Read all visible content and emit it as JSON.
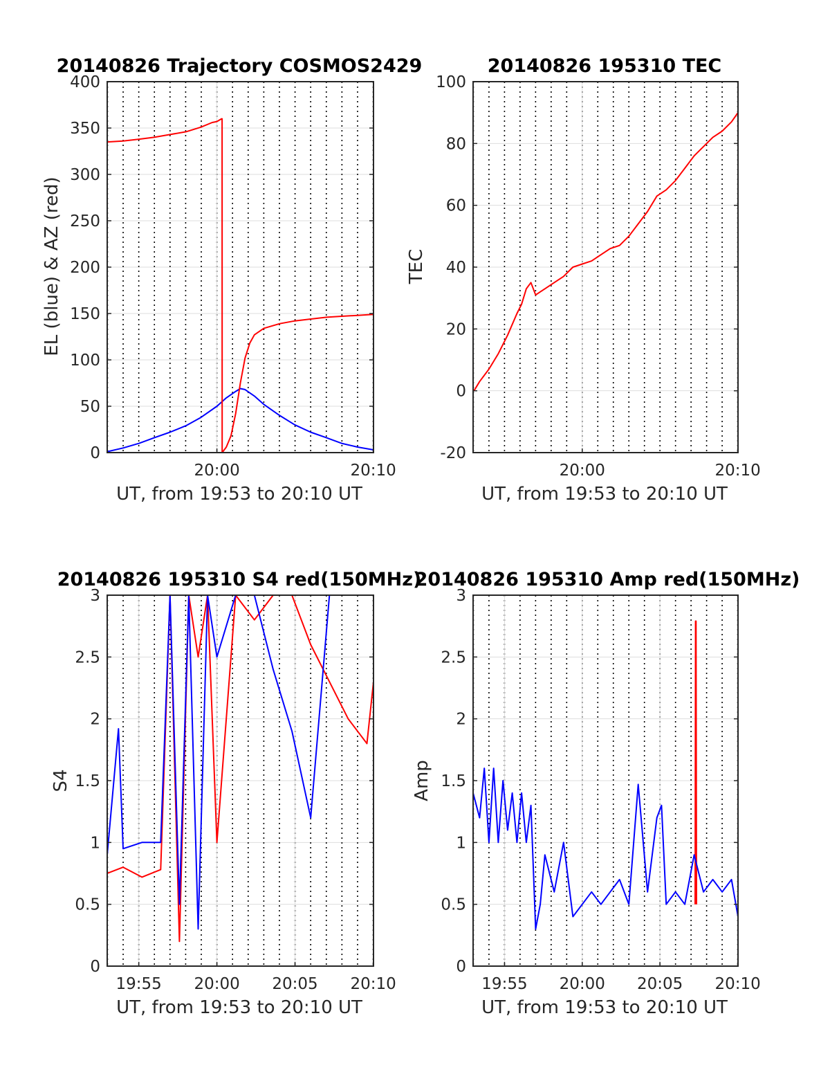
{
  "colors": {
    "el": "#0000ff",
    "az": "#ff0000",
    "amp_red": "#ff0000",
    "amp_blue": "#0000ff",
    "grid": "#dddddd"
  },
  "chart_data": [
    {
      "id": "traj",
      "type": "line",
      "title": "20140826 Trajectory COSMOS2429",
      "xlabel": "UT, from 19:53 to 20:10 UT",
      "ylabel": "EL (blue) & AZ (red)",
      "xlim": [
        19.883,
        20.167
      ],
      "ylim": [
        0,
        400
      ],
      "yticks": [
        0,
        50,
        100,
        150,
        200,
        250,
        300,
        350,
        400
      ],
      "xticks": [
        {
          "t": 20.0,
          "label": "20:00"
        },
        {
          "t": 20.1667,
          "label": "20:10"
        }
      ],
      "series": [
        {
          "color_key": "el",
          "x": [
            19.883,
            19.9,
            19.917,
            19.933,
            19.95,
            19.967,
            19.983,
            20.0,
            20.01,
            20.02,
            20.025,
            20.03,
            20.04,
            20.05,
            20.067,
            20.083,
            20.1,
            20.117,
            20.133,
            20.15,
            20.167
          ],
          "y": [
            1,
            5,
            10,
            16,
            22,
            29,
            38,
            50,
            59,
            66,
            69,
            68,
            61,
            52,
            40,
            30,
            22,
            16,
            10,
            6,
            3
          ]
        },
        {
          "color_key": "az",
          "x": [
            19.883,
            19.9,
            19.917,
            19.933,
            19.95,
            19.967,
            19.983,
            19.995,
            20.0,
            20.005,
            20.0055,
            20.0056,
            20.01,
            20.015,
            20.02,
            20.025,
            20.03,
            20.035,
            20.04,
            20.05,
            20.067,
            20.083,
            20.1,
            20.117,
            20.133,
            20.15,
            20.167
          ],
          "y": [
            335,
            336,
            338,
            340,
            343,
            346,
            351,
            356,
            357,
            360,
            360,
            0,
            6,
            18,
            42,
            75,
            102,
            118,
            127,
            134,
            139,
            142,
            144,
            146,
            147,
            148,
            149
          ]
        }
      ]
    },
    {
      "id": "tec",
      "type": "line",
      "title": "20140826 195310 TEC",
      "xlabel": "UT, from 19:53 to 20:10 UT",
      "ylabel": "TEC",
      "xlim": [
        19.883,
        20.167
      ],
      "ylim": [
        -20,
        100
      ],
      "yticks": [
        -20,
        0,
        20,
        40,
        60,
        80,
        100
      ],
      "xticks": [
        {
          "t": 20.0,
          "label": "20:00"
        },
        {
          "t": 20.1667,
          "label": "20:10"
        }
      ],
      "series": [
        {
          "color_key": "az",
          "x": [
            19.884,
            19.89,
            19.9,
            19.91,
            19.92,
            19.93,
            19.935,
            19.94,
            19.945,
            19.95,
            19.955,
            19.96,
            19.97,
            19.98,
            19.99,
            20.0,
            20.01,
            20.02,
            20.03,
            20.04,
            20.05,
            20.06,
            20.07,
            20.08,
            20.09,
            20.1,
            20.11,
            20.12,
            20.13,
            20.14,
            20.15,
            20.16,
            20.167
          ],
          "y": [
            0,
            3,
            7,
            12,
            18,
            25,
            28,
            33,
            35,
            31,
            32,
            33,
            35,
            37,
            40,
            41,
            42,
            44,
            46,
            47,
            50,
            54,
            58,
            63,
            65,
            68,
            72,
            76,
            79,
            82,
            84,
            87,
            90
          ]
        }
      ]
    },
    {
      "id": "s4",
      "type": "line",
      "title": "20140826 195310 S4 red(150MHz)",
      "xlabel": "UT, from 19:53 to 20:10 UT",
      "ylabel": "S4",
      "xlim": [
        19.883,
        20.167
      ],
      "ylim": [
        0,
        3
      ],
      "yticks": [
        0,
        0.5,
        1,
        1.5,
        2,
        2.5,
        3
      ],
      "xticks": [
        {
          "t": 19.9167,
          "label": "19:55"
        },
        {
          "t": 20.0,
          "label": "20:00"
        },
        {
          "t": 20.0833,
          "label": "20:05"
        },
        {
          "t": 20.1667,
          "label": "20:10"
        }
      ],
      "series": [
        {
          "color_key": "az",
          "x": [
            19.883,
            19.9,
            19.92,
            19.94,
            19.95,
            19.96,
            19.97,
            19.98,
            19.99,
            20.0,
            20.02,
            20.04,
            20.06,
            20.08,
            20.1,
            20.12,
            20.14,
            20.16,
            20.167
          ],
          "y": [
            0.75,
            0.8,
            0.72,
            0.78,
            3,
            0.2,
            3,
            2.5,
            3,
            1.0,
            3,
            2.8,
            3,
            3,
            2.6,
            2.3,
            2.0,
            1.8,
            2.3
          ]
        },
        {
          "color_key": "el",
          "x": [
            19.883,
            19.895,
            19.9,
            19.92,
            19.94,
            19.95,
            19.96,
            19.97,
            19.98,
            19.99,
            20.0,
            20.02,
            20.04,
            20.06,
            20.08,
            20.1,
            20.12,
            20.14,
            20.16,
            20.167
          ],
          "y": [
            0.9,
            1.92,
            0.95,
            1.0,
            1.0,
            3,
            0.5,
            3,
            0.3,
            3,
            2.5,
            3,
            3,
            2.4,
            1.9,
            1.2,
            3,
            3,
            3,
            3
          ]
        }
      ]
    },
    {
      "id": "amp",
      "type": "line",
      "title": "20140826 195310 Amp red(150MHz)",
      "xlabel": "UT, from 19:53 to 20:10 UT",
      "ylabel": "Amp",
      "xlim": [
        19.883,
        20.167
      ],
      "ylim": [
        0,
        3
      ],
      "yticks": [
        0,
        0.5,
        1,
        1.5,
        2,
        2.5,
        3
      ],
      "xticks": [
        {
          "t": 19.9167,
          "label": "19:55"
        },
        {
          "t": 20.0,
          "label": "20:00"
        },
        {
          "t": 20.0833,
          "label": "20:05"
        },
        {
          "t": 20.1667,
          "label": "20:10"
        }
      ],
      "series": [
        {
          "color_key": "amp_red",
          "x": [
            20.121,
            20.1215,
            20.122,
            20.1225
          ],
          "y": [
            0.5,
            2.79,
            2.79,
            0.5
          ]
        },
        {
          "color_key": "amp_blue",
          "x": [
            19.883,
            19.89,
            19.895,
            19.9,
            19.905,
            19.91,
            19.915,
            19.92,
            19.925,
            19.93,
            19.935,
            19.94,
            19.945,
            19.95,
            19.955,
            19.96,
            19.97,
            19.98,
            19.99,
            20.0,
            20.01,
            20.02,
            20.03,
            20.04,
            20.05,
            20.06,
            20.07,
            20.08,
            20.085,
            20.09,
            20.1,
            20.11,
            20.12,
            20.13,
            20.14,
            20.15,
            20.16,
            20.167
          ],
          "y": [
            1.4,
            1.2,
            1.6,
            1.0,
            1.6,
            1.0,
            1.5,
            1.1,
            1.4,
            1.0,
            1.4,
            1.0,
            1.3,
            0.3,
            0.5,
            0.9,
            0.6,
            1.0,
            0.4,
            0.5,
            0.6,
            0.5,
            0.6,
            0.7,
            0.5,
            1.47,
            0.6,
            1.2,
            1.3,
            0.5,
            0.6,
            0.5,
            0.9,
            0.6,
            0.7,
            0.6,
            0.7,
            0.4
          ]
        }
      ]
    }
  ]
}
